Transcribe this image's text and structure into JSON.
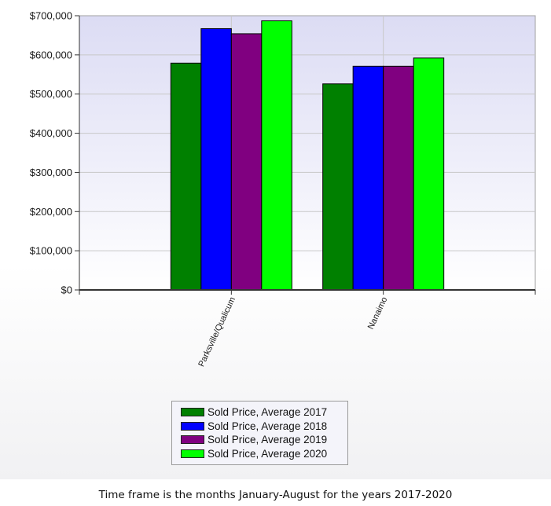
{
  "chart_data": {
    "type": "bar",
    "categories": [
      "Parksville/Qualicum",
      "Nanaimo"
    ],
    "series": [
      {
        "name": "Sold Price, Average 2017",
        "color": "#008000",
        "values": [
          579000,
          526000
        ]
      },
      {
        "name": "Sold Price, Average 2018",
        "color": "#0000ff",
        "values": [
          667000,
          571000
        ]
      },
      {
        "name": "Sold Price, Average 2019",
        "color": "#800080",
        "values": [
          654000,
          571000
        ]
      },
      {
        "name": "Sold Price, Average 2020",
        "color": "#00ff00",
        "values": [
          687000,
          592000
        ]
      }
    ],
    "ylim": [
      0,
      700000
    ],
    "yticks": [
      "$0",
      "$100,000",
      "$200,000",
      "$300,000",
      "$400,000",
      "$500,000",
      "$600,000",
      "$700,000"
    ],
    "grid": true,
    "legend_position": "bottom-center"
  },
  "footnote": "Time frame is the months January-August for the years 2017-2020"
}
